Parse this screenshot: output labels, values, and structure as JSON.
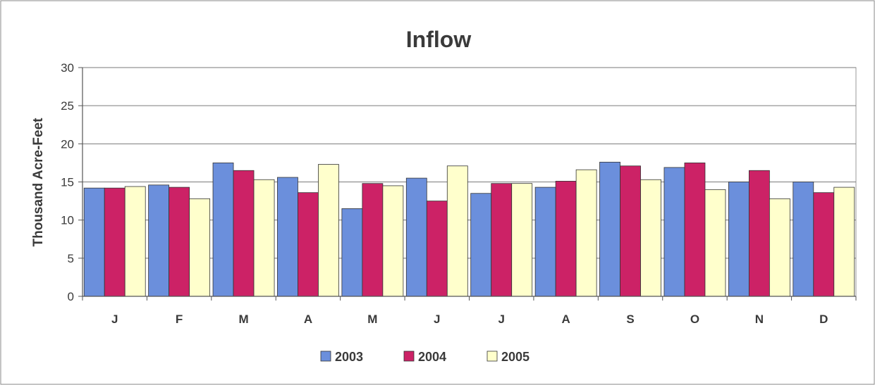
{
  "chart_data": {
    "type": "bar",
    "title": "Inflow",
    "xlabel": "",
    "ylabel": "Thousand Acre-Feet",
    "ylim": [
      0,
      30
    ],
    "yticks": [
      0,
      5,
      10,
      15,
      20,
      25,
      30
    ],
    "grid": true,
    "legend_position": "bottom",
    "categories": [
      "J",
      "F",
      "M",
      "A",
      "M",
      "J",
      "J",
      "A",
      "S",
      "O",
      "N",
      "D"
    ],
    "series": [
      {
        "name": "2003",
        "color": "#6b8fdc",
        "values": [
          14.2,
          14.6,
          17.5,
          15.6,
          11.5,
          15.5,
          13.5,
          14.3,
          17.6,
          16.9,
          15.0,
          15.0
        ]
      },
      {
        "name": "2004",
        "color": "#cc2266",
        "values": [
          14.2,
          14.3,
          16.5,
          13.6,
          14.8,
          12.5,
          14.8,
          15.1,
          17.1,
          17.5,
          16.5,
          13.6
        ]
      },
      {
        "name": "2005",
        "color": "#ffffcc",
        "values": [
          14.4,
          12.8,
          15.3,
          17.3,
          14.5,
          17.1,
          14.8,
          16.6,
          15.3,
          14.0,
          12.8,
          14.3
        ]
      }
    ]
  }
}
